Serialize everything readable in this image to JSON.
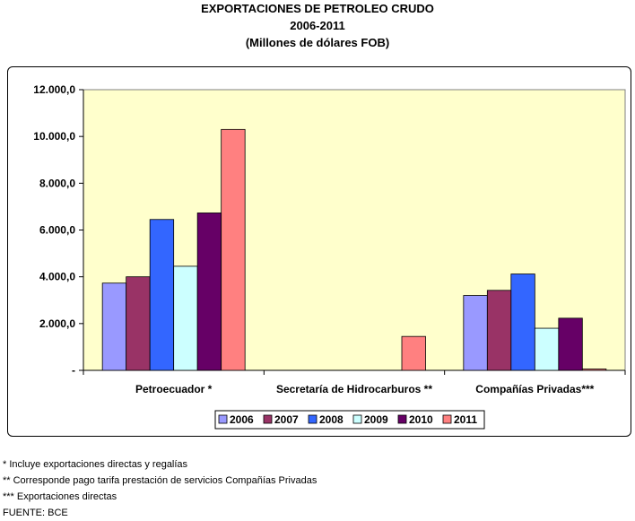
{
  "title": {
    "line1": "EXPORTACIONES DE PETROLEO CRUDO",
    "line2": "2006-2011",
    "line3": "(Millones de dólares FOB)"
  },
  "chart_data": {
    "type": "bar",
    "title": "EXPORTACIONES DE PETROLEO CRUDO",
    "subtitle": "2006-2011 (Millones de dólares FOB)",
    "xlabel": "",
    "ylabel": "",
    "ylim": [
      0,
      12000
    ],
    "yticks": [
      0,
      2000,
      4000,
      6000,
      8000,
      10000,
      12000
    ],
    "ytick_labels": [
      "-",
      "2.000,0",
      "4.000,0",
      "6.000,0",
      "8.000,0",
      "10.000,0",
      "12.000,0"
    ],
    "categories": [
      "Petroecuador *",
      "Secretaría de Hidrocarburos **",
      "Compañías Privadas***"
    ],
    "series": [
      {
        "name": "2006",
        "color": "#9999ff",
        "values": [
          3730,
          0,
          3200
        ]
      },
      {
        "name": "2007",
        "color": "#993366",
        "values": [
          4000,
          0,
          3420
        ]
      },
      {
        "name": "2008",
        "color": "#3366ff",
        "values": [
          6450,
          0,
          4120
        ]
      },
      {
        "name": "2009",
        "color": "#ccffff",
        "values": [
          4450,
          0,
          1800
        ]
      },
      {
        "name": "2010",
        "color": "#660066",
        "values": [
          6730,
          0,
          2230
        ]
      },
      {
        "name": "2011",
        "color": "#ff8080",
        "values": [
          10300,
          1450,
          60
        ]
      }
    ],
    "plot_background": "#ffffcc",
    "legend_position": "bottom",
    "grid": false
  },
  "footnotes": [
    "* Incluye exportaciones directas y regalías",
    "** Corresponde pago tarifa prestación de servicios Compañías Privadas",
    "*** Exportaciones directas",
    "FUENTE: BCE"
  ]
}
